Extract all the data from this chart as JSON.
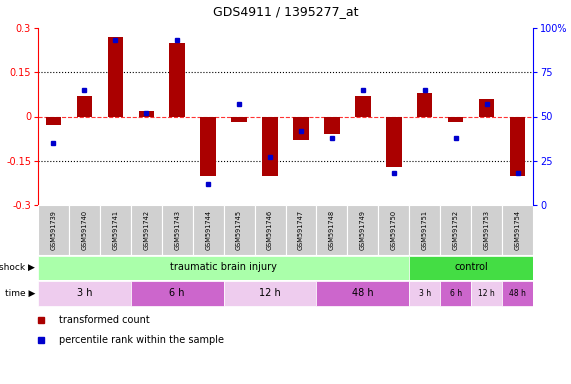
{
  "title": "GDS4911 / 1395277_at",
  "samples": [
    "GSM591739",
    "GSM591740",
    "GSM591741",
    "GSM591742",
    "GSM591743",
    "GSM591744",
    "GSM591745",
    "GSM591746",
    "GSM591747",
    "GSM591748",
    "GSM591749",
    "GSM591750",
    "GSM591751",
    "GSM591752",
    "GSM591753",
    "GSM591754"
  ],
  "bar_values": [
    -0.03,
    0.07,
    0.27,
    0.02,
    0.25,
    -0.2,
    -0.02,
    -0.2,
    -0.08,
    -0.06,
    0.07,
    -0.17,
    0.08,
    -0.02,
    0.06,
    -0.2
  ],
  "dot_values": [
    35,
    65,
    93,
    52,
    93,
    12,
    57,
    27,
    42,
    38,
    65,
    18,
    65,
    38,
    57,
    18
  ],
  "bar_color": "#AA0000",
  "dot_color": "#0000CC",
  "ylim_left": [
    -0.3,
    0.3
  ],
  "ylim_right": [
    0,
    100
  ],
  "yticks_left": [
    -0.3,
    -0.15,
    0.0,
    0.15,
    0.3
  ],
  "ytick_left_labels": [
    "-0.3",
    "-0.15",
    "0",
    "0.15",
    "0.3"
  ],
  "yticks_right": [
    0,
    25,
    50,
    75,
    100
  ],
  "ytick_right_labels": [
    "0",
    "25",
    "50",
    "75",
    "100%"
  ],
  "dotted_lines": [
    0.15,
    -0.15
  ],
  "zero_line_color": "#FF3333",
  "chart_bg": "#FFFFFF",
  "box_bg": "#D0D0D0",
  "shock_groups": [
    {
      "label": "traumatic brain injury",
      "start": 0,
      "end": 12,
      "color": "#AAFFAA"
    },
    {
      "label": "control",
      "start": 12,
      "end": 16,
      "color": "#44DD44"
    }
  ],
  "time_segs": [
    {
      "label": "3 h",
      "start": 0,
      "end": 3,
      "color": "#EECCEE"
    },
    {
      "label": "6 h",
      "start": 3,
      "end": 6,
      "color": "#CC66CC"
    },
    {
      "label": "12 h",
      "start": 6,
      "end": 9,
      "color": "#EECCEE"
    },
    {
      "label": "48 h",
      "start": 9,
      "end": 12,
      "color": "#CC66CC"
    },
    {
      "label": "3 h",
      "start": 12,
      "end": 13,
      "color": "#EECCEE"
    },
    {
      "label": "6 h",
      "start": 13,
      "end": 14,
      "color": "#CC66CC"
    },
    {
      "label": "12 h",
      "start": 14,
      "end": 15,
      "color": "#EECCEE"
    },
    {
      "label": "48 h",
      "start": 15,
      "end": 16,
      "color": "#CC66CC"
    }
  ],
  "legend": [
    {
      "label": "transformed count",
      "color": "#AA0000"
    },
    {
      "label": "percentile rank within the sample",
      "color": "#0000CC"
    }
  ],
  "shock_row_label": "shock",
  "time_row_label": "time"
}
